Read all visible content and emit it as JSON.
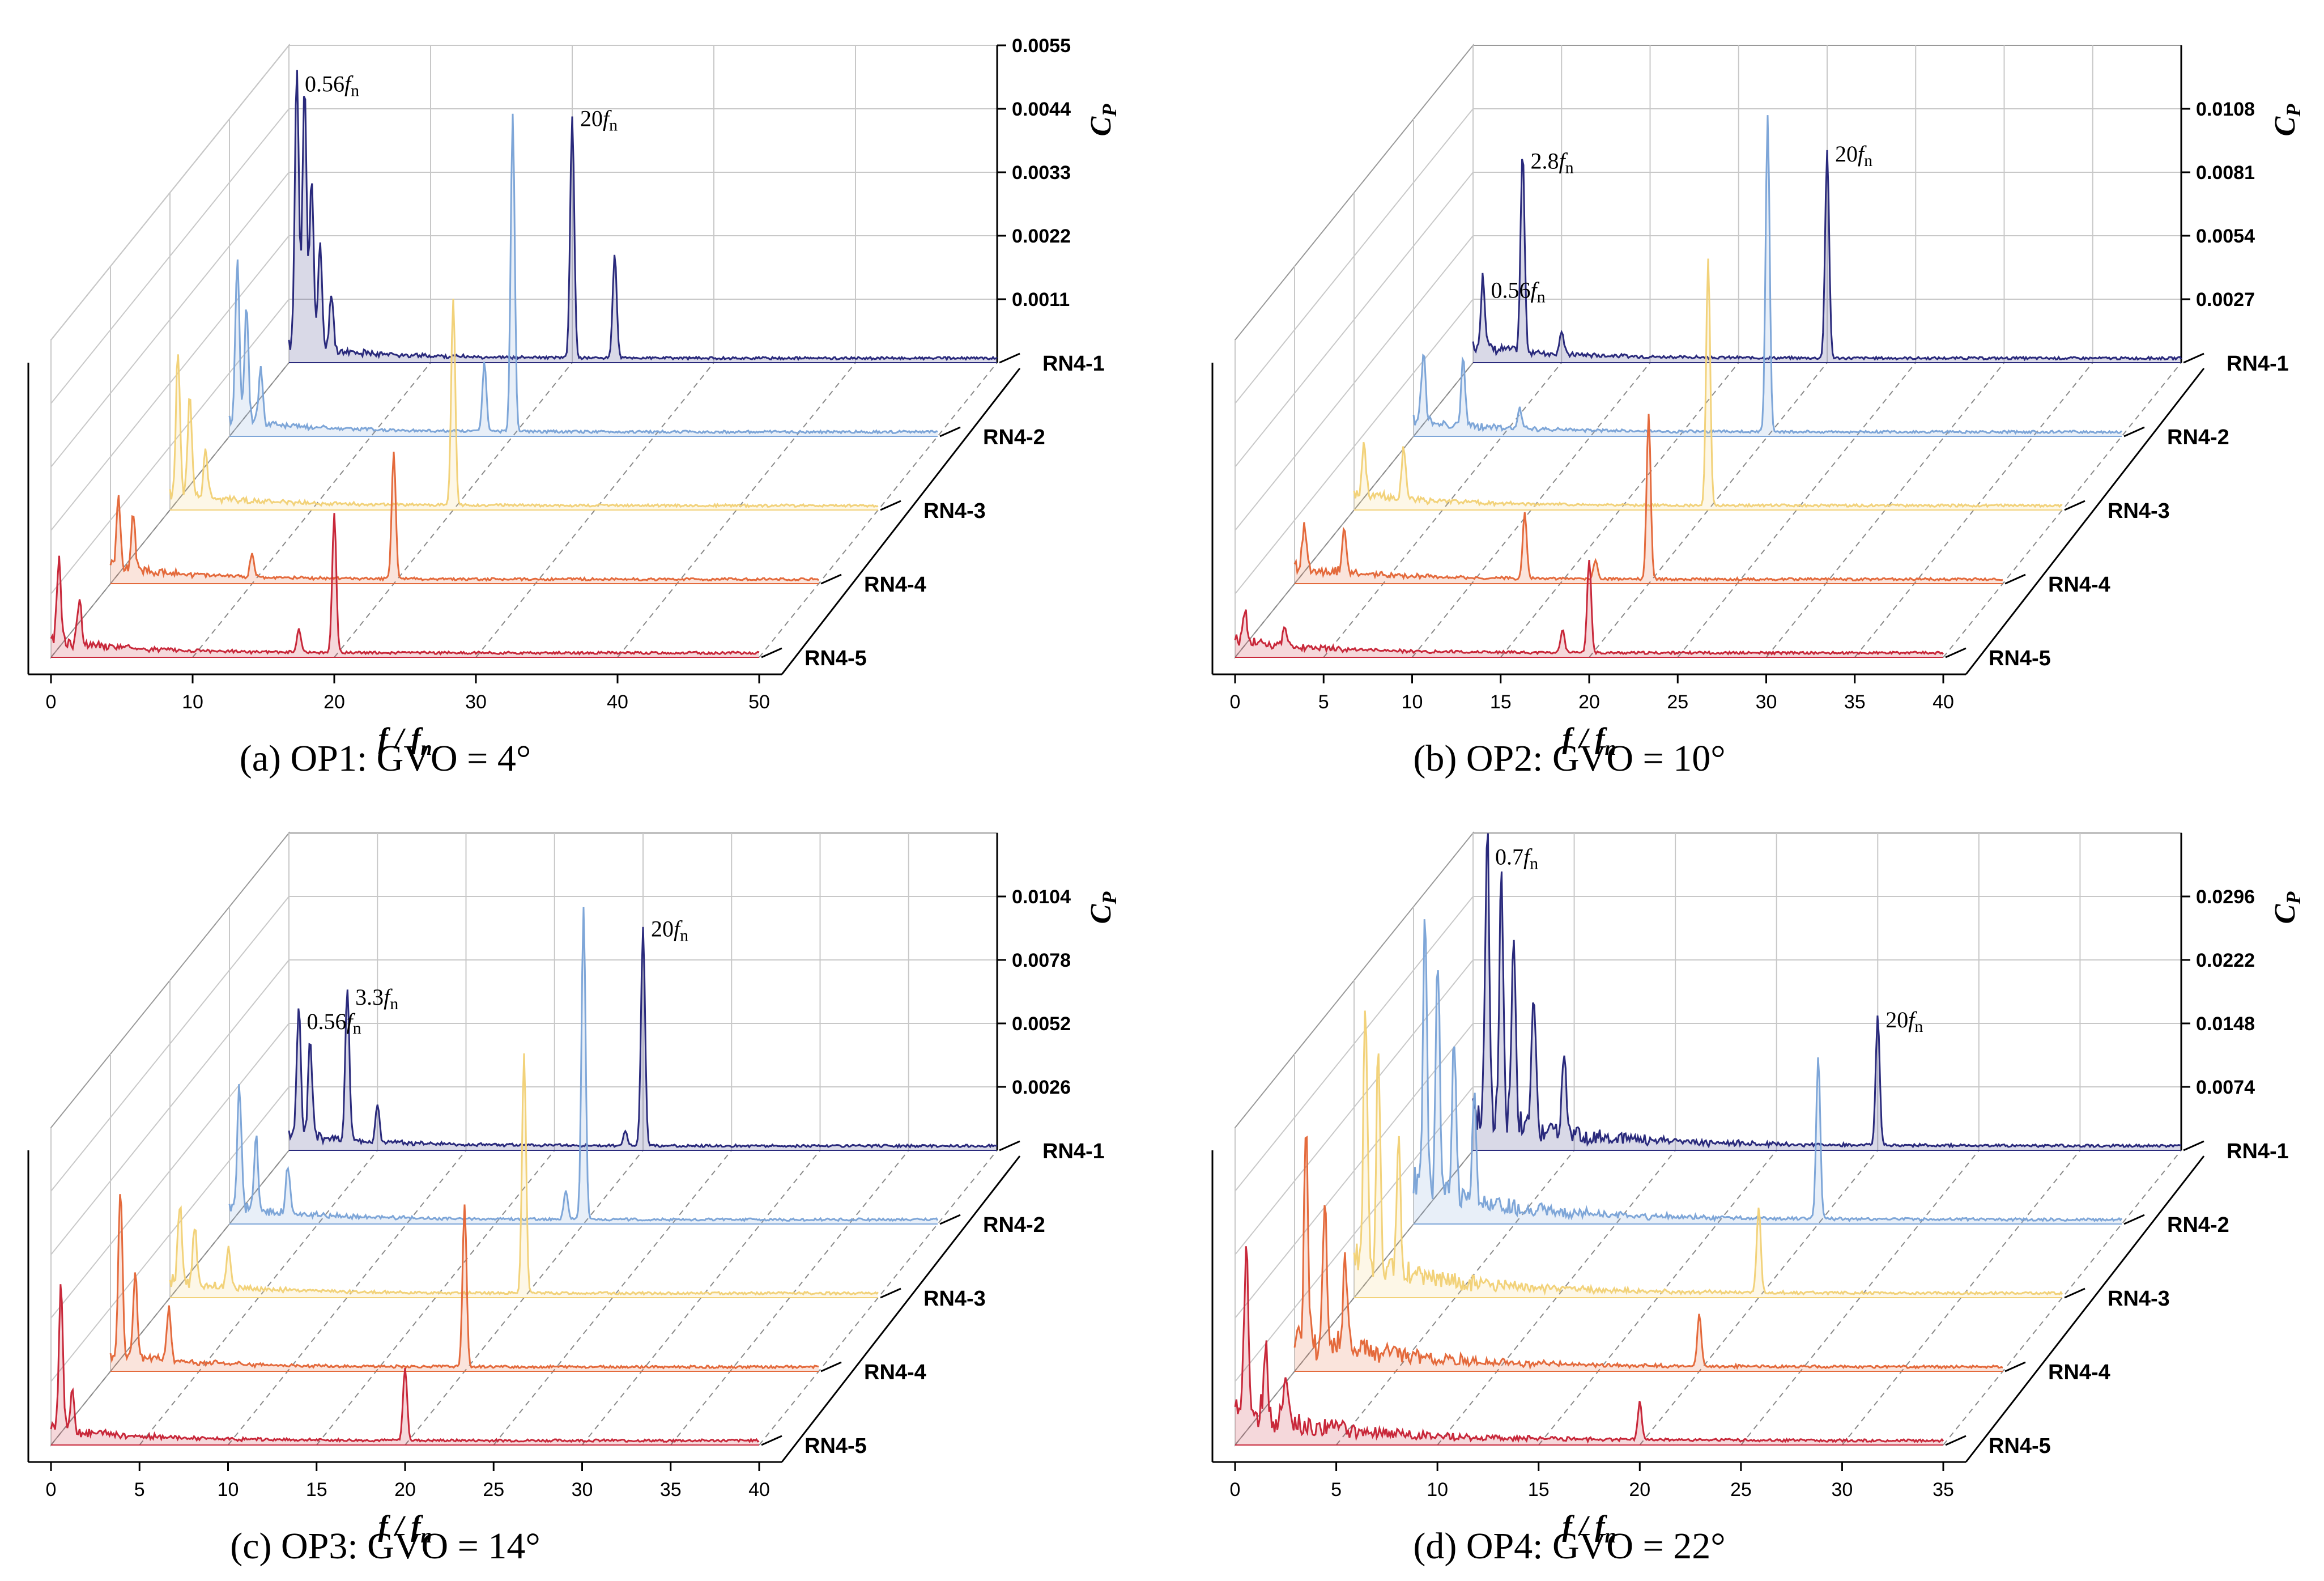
{
  "colors": {
    "series": [
      "#2a2a7c",
      "#7ea6d8",
      "#f2d27a",
      "#e46a3c",
      "#c8283a"
    ],
    "grid": "#c8c8c8",
    "dash": "#8a8a8a",
    "axis": "#000000"
  },
  "rows": [
    "RN4-1",
    "RN4-2",
    "RN4-3",
    "RN4-4",
    "RN4-5"
  ],
  "chart_data": [
    {
      "type": "line",
      "panel": "a",
      "title": "(a) OP1: GVO = 4°",
      "xlabel": "f / f_n",
      "ylabel": "C_P",
      "x_ticks": [
        0,
        10,
        20,
        30,
        40,
        50
      ],
      "xlim": [
        0,
        50
      ],
      "y_ticks": [
        "0.0011",
        "0.0022",
        "0.0033",
        "0.0044",
        "0.0055"
      ],
      "ymax": 0.0055,
      "series": [
        {
          "name": "RN4-1",
          "peaks": [
            [
              0.56,
              0.0048
            ],
            [
              1.1,
              0.0046
            ],
            [
              1.6,
              0.003
            ],
            [
              2.2,
              0.0018
            ],
            [
              3,
              0.001
            ],
            [
              20,
              0.0042
            ],
            [
              23,
              0.0018
            ]
          ]
        },
        {
          "name": "RN4-2",
          "peaks": [
            [
              0.56,
              0.0028
            ],
            [
              1.2,
              0.002
            ],
            [
              2.2,
              0.001
            ],
            [
              20,
              0.0055
            ],
            [
              18,
              0.0012
            ]
          ]
        },
        {
          "name": "RN4-3",
          "peaks": [
            [
              0.56,
              0.0024
            ],
            [
              1.4,
              0.0018
            ],
            [
              2.5,
              0.0008
            ],
            [
              20,
              0.0036
            ]
          ]
        },
        {
          "name": "RN4-4",
          "peaks": [
            [
              0.56,
              0.0012
            ],
            [
              1.6,
              0.001
            ],
            [
              20,
              0.0022
            ],
            [
              10,
              0.0004
            ]
          ]
        },
        {
          "name": "RN4-5",
          "peaks": [
            [
              0.56,
              0.0014
            ],
            [
              2,
              0.0008
            ],
            [
              20,
              0.0024
            ],
            [
              17.5,
              0.0004
            ]
          ]
        }
      ],
      "annotations": [
        {
          "row": 0,
          "x": 0.56,
          "base": "0.56",
          "sub": "n"
        },
        {
          "row": 0,
          "x": 20,
          "base": "20",
          "sub": "n"
        }
      ]
    },
    {
      "type": "line",
      "panel": "b",
      "title": "(b) OP2: GVO = 10°",
      "xlabel": "f / f_n",
      "ylabel": "C_P",
      "x_ticks": [
        0,
        5,
        10,
        15,
        20,
        25,
        30,
        35,
        40
      ],
      "xlim": [
        0,
        40
      ],
      "y_ticks": [
        "0.0027",
        "0.0054",
        "0.0081",
        "0.0108"
      ],
      "ymax": 0.0135,
      "series": [
        {
          "name": "RN4-1",
          "peaks": [
            [
              0.56,
              0.003
            ],
            [
              2.8,
              0.0085
            ],
            [
              20,
              0.0088
            ],
            [
              5,
              0.001
            ]
          ]
        },
        {
          "name": "RN4-2",
          "peaks": [
            [
              0.56,
              0.003
            ],
            [
              2.8,
              0.0028
            ],
            [
              20,
              0.0135
            ],
            [
              6,
              0.0008
            ]
          ]
        },
        {
          "name": "RN4-3",
          "peaks": [
            [
              0.56,
              0.0022
            ],
            [
              2.8,
              0.0022
            ],
            [
              20,
              0.0105
            ]
          ]
        },
        {
          "name": "RN4-4",
          "peaks": [
            [
              0.56,
              0.0018
            ],
            [
              2.8,
              0.002
            ],
            [
              20,
              0.007
            ],
            [
              13,
              0.0028
            ],
            [
              17,
              0.0008
            ]
          ]
        },
        {
          "name": "RN4-5",
          "peaks": [
            [
              0.56,
              0.0014
            ],
            [
              2.8,
              0.0008
            ],
            [
              20,
              0.004
            ],
            [
              18.5,
              0.001
            ]
          ]
        }
      ],
      "annotations": [
        {
          "row": 0,
          "x": 0.56,
          "base": "0.56",
          "sub": "n"
        },
        {
          "row": 0,
          "x": 2.8,
          "base": "2.8",
          "sub": "n"
        },
        {
          "row": 0,
          "x": 20,
          "base": "20",
          "sub": "n"
        }
      ]
    },
    {
      "type": "line",
      "panel": "c",
      "title": "(c) OP3: GVO = 14°",
      "xlabel": "f / f_n",
      "ylabel": "C_P",
      "x_ticks": [
        0,
        5,
        10,
        15,
        20,
        25,
        30,
        35,
        40
      ],
      "xlim": [
        0,
        40
      ],
      "y_ticks": [
        "0.0026",
        "0.0052",
        "0.0078",
        "0.0104"
      ],
      "ymax": 0.013,
      "series": [
        {
          "name": "RN4-1",
          "peaks": [
            [
              0.56,
              0.0052
            ],
            [
              1.2,
              0.004
            ],
            [
              3.3,
              0.0062
            ],
            [
              5,
              0.0015
            ],
            [
              20,
              0.009
            ],
            [
              19,
              0.0006
            ]
          ]
        },
        {
          "name": "RN4-2",
          "peaks": [
            [
              0.56,
              0.005
            ],
            [
              1.5,
              0.003
            ],
            [
              3.3,
              0.002
            ],
            [
              20,
              0.0128
            ],
            [
              19,
              0.0012
            ]
          ]
        },
        {
          "name": "RN4-3",
          "peaks": [
            [
              0.56,
              0.0032
            ],
            [
              1.4,
              0.0024
            ],
            [
              3.3,
              0.0016
            ],
            [
              20,
              0.0098
            ]
          ]
        },
        {
          "name": "RN4-4",
          "peaks": [
            [
              0.56,
              0.0068
            ],
            [
              1.4,
              0.0036
            ],
            [
              3.3,
              0.0022
            ],
            [
              20,
              0.0066
            ]
          ]
        },
        {
          "name": "RN4-5",
          "peaks": [
            [
              0.56,
              0.006
            ],
            [
              1.2,
              0.0016
            ],
            [
              20,
              0.003
            ]
          ]
        }
      ],
      "annotations": [
        {
          "row": 0,
          "x": 0.56,
          "base": "0.56",
          "sub": "n"
        },
        {
          "row": 0,
          "x": 3.3,
          "base": "3.3",
          "sub": "n"
        },
        {
          "row": 0,
          "x": 20,
          "base": "20",
          "sub": "n"
        }
      ]
    },
    {
      "type": "line",
      "panel": "d",
      "title": "(d) OP4: GVO = 22°",
      "xlabel": "f / f_n",
      "ylabel": "C_P",
      "x_ticks": [
        0,
        5,
        10,
        15,
        20,
        25,
        30,
        35
      ],
      "xlim": [
        0,
        35
      ],
      "y_ticks": [
        "0.0074",
        "0.0148",
        "0.0222",
        "0.0296"
      ],
      "ymax": 0.037,
      "series": [
        {
          "name": "RN4-1",
          "peaks": [
            [
              0.7,
              0.034
            ],
            [
              1.4,
              0.028
            ],
            [
              2,
              0.022
            ],
            [
              3,
              0.016
            ],
            [
              4.5,
              0.01
            ],
            [
              20,
              0.015
            ]
          ]
        },
        {
          "name": "RN4-2",
          "peaks": [
            [
              0.56,
              0.032
            ],
            [
              1.2,
              0.027
            ],
            [
              2,
              0.018
            ],
            [
              3,
              0.012
            ],
            [
              20,
              0.019
            ]
          ]
        },
        {
          "name": "RN4-3",
          "peaks": [
            [
              0.56,
              0.03
            ],
            [
              1.2,
              0.025
            ],
            [
              2.2,
              0.016
            ],
            [
              20,
              0.01
            ]
          ]
        },
        {
          "name": "RN4-4",
          "peaks": [
            [
              0.56,
              0.024
            ],
            [
              1.5,
              0.016
            ],
            [
              2.5,
              0.01
            ],
            [
              20,
              0.006
            ]
          ]
        },
        {
          "name": "RN4-5",
          "peaks": [
            [
              0.56,
              0.02
            ],
            [
              1.5,
              0.009
            ],
            [
              2.5,
              0.006
            ],
            [
              20,
              0.0044
            ]
          ]
        }
      ],
      "annotations": [
        {
          "row": 0,
          "x": 0.7,
          "base": "0.7",
          "sub": "n"
        },
        {
          "row": 0,
          "x": 20,
          "base": "20",
          "sub": "n"
        }
      ]
    }
  ]
}
